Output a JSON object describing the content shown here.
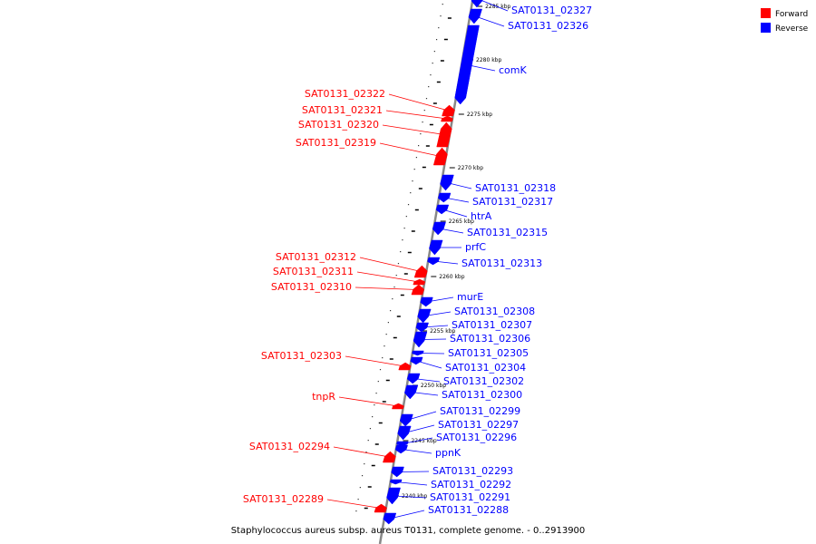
{
  "caption": "Staphylococcus aureus subsp. aureus T0131, complete genome. - 0..2913900",
  "legend": {
    "forward_label": "Forward",
    "reverse_label": "Reverse",
    "forward_color": "#ff0000",
    "reverse_color": "#0000ff"
  },
  "ticks": [
    "2285 kbp",
    "2280 kbp",
    "2275 kbp",
    "2270 kbp",
    "2265 kbp",
    "2260 kbp",
    "2255 kbp",
    "2250 kbp",
    "2245 kbp",
    "2240 kbp"
  ],
  "genes": [
    {
      "label": "SAT0131_02327",
      "strand": "reverse"
    },
    {
      "label": "SAT0131_02326",
      "strand": "reverse"
    },
    {
      "label": "comK",
      "strand": "reverse"
    },
    {
      "label": "SAT0131_02322",
      "strand": "forward"
    },
    {
      "label": "SAT0131_02321",
      "strand": "forward"
    },
    {
      "label": "SAT0131_02320",
      "strand": "forward"
    },
    {
      "label": "SAT0131_02319",
      "strand": "forward"
    },
    {
      "label": "SAT0131_02318",
      "strand": "reverse"
    },
    {
      "label": "SAT0131_02317",
      "strand": "reverse"
    },
    {
      "label": "htrA",
      "strand": "reverse"
    },
    {
      "label": "SAT0131_02315",
      "strand": "reverse"
    },
    {
      "label": "prfC",
      "strand": "reverse"
    },
    {
      "label": "SAT0131_02313",
      "strand": "reverse"
    },
    {
      "label": "SAT0131_02312",
      "strand": "forward"
    },
    {
      "label": "SAT0131_02311",
      "strand": "forward"
    },
    {
      "label": "SAT0131_02310",
      "strand": "forward"
    },
    {
      "label": "murE",
      "strand": "reverse"
    },
    {
      "label": "SAT0131_02308",
      "strand": "reverse"
    },
    {
      "label": "SAT0131_02307",
      "strand": "reverse"
    },
    {
      "label": "SAT0131_02306",
      "strand": "reverse"
    },
    {
      "label": "SAT0131_02305",
      "strand": "reverse"
    },
    {
      "label": "SAT0131_02304",
      "strand": "reverse"
    },
    {
      "label": "SAT0131_02303",
      "strand": "forward"
    },
    {
      "label": "SAT0131_02302",
      "strand": "reverse"
    },
    {
      "label": "SAT0131_02300",
      "strand": "reverse"
    },
    {
      "label": "tnpR",
      "strand": "forward"
    },
    {
      "label": "SAT0131_02299",
      "strand": "reverse"
    },
    {
      "label": "SAT0131_02297",
      "strand": "reverse"
    },
    {
      "label": "SAT0131_02296",
      "strand": "reverse"
    },
    {
      "label": "ppnK",
      "strand": "reverse"
    },
    {
      "label": "SAT0131_02294",
      "strand": "forward"
    },
    {
      "label": "SAT0131_02293",
      "strand": "reverse"
    },
    {
      "label": "SAT0131_02292",
      "strand": "reverse"
    },
    {
      "label": "SAT0131_02291",
      "strand": "reverse"
    },
    {
      "label": "SAT0131_02288",
      "strand": "reverse"
    },
    {
      "label": "SAT0131_02289",
      "strand": "forward"
    }
  ]
}
